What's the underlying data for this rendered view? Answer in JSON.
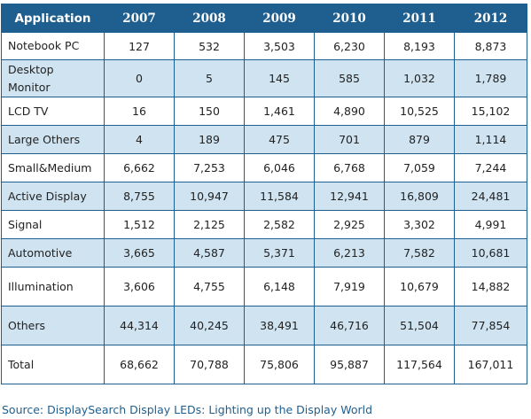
{
  "chart_data": {
    "type": "table",
    "header": [
      "Application",
      "2007",
      "2008",
      "2009",
      "2010",
      "2011",
      "2012"
    ],
    "rows": [
      {
        "label": "Notebook PC",
        "values": [
          "127",
          "532",
          "3,503",
          "6,230",
          "8,193",
          "8,873"
        ]
      },
      {
        "label": "Desktop Monitor",
        "values": [
          "0",
          "5",
          "145",
          "585",
          "1,032",
          "1,789"
        ]
      },
      {
        "label": "LCD TV",
        "values": [
          "16",
          "150",
          "1,461",
          "4,890",
          "10,525",
          "15,102"
        ]
      },
      {
        "label": "Large Others",
        "values": [
          "4",
          "189",
          "475",
          "701",
          "879",
          "1,114"
        ]
      },
      {
        "label": "Small&Medium",
        "values": [
          "6,662",
          "7,253",
          "6,046",
          "6,768",
          "7,059",
          "7,244"
        ]
      },
      {
        "label": "Active Display",
        "values": [
          "8,755",
          "10,947",
          "11,584",
          "12,941",
          "16,809",
          "24,481"
        ]
      },
      {
        "label": "Signal",
        "values": [
          "1,512",
          "2,125",
          "2,582",
          "2,925",
          "3,302",
          "4,991"
        ]
      },
      {
        "label": "Automotive",
        "values": [
          "3,665",
          "4,587",
          "5,371",
          "6,213",
          "7,582",
          "10,681"
        ]
      },
      {
        "label": "Illumination",
        "values": [
          "3,606",
          "4,755",
          "6,148",
          "7,919",
          "10,679",
          "14,882"
        ]
      },
      {
        "label": "Others",
        "values": [
          "44,314",
          "40,245",
          "38,491",
          "46,716",
          "51,504",
          "77,854"
        ]
      },
      {
        "label": "Total",
        "values": [
          "68,662",
          "70,788",
          "75,806",
          "95,887",
          "117,564",
          "167,011"
        ]
      }
    ]
  },
  "source": "Source: DisplaySearch Display LEDs: Lighting up the Display World",
  "colors": {
    "header": "#1f5f8f",
    "band": "#cfe3f1",
    "border": "#1c5f91"
  }
}
